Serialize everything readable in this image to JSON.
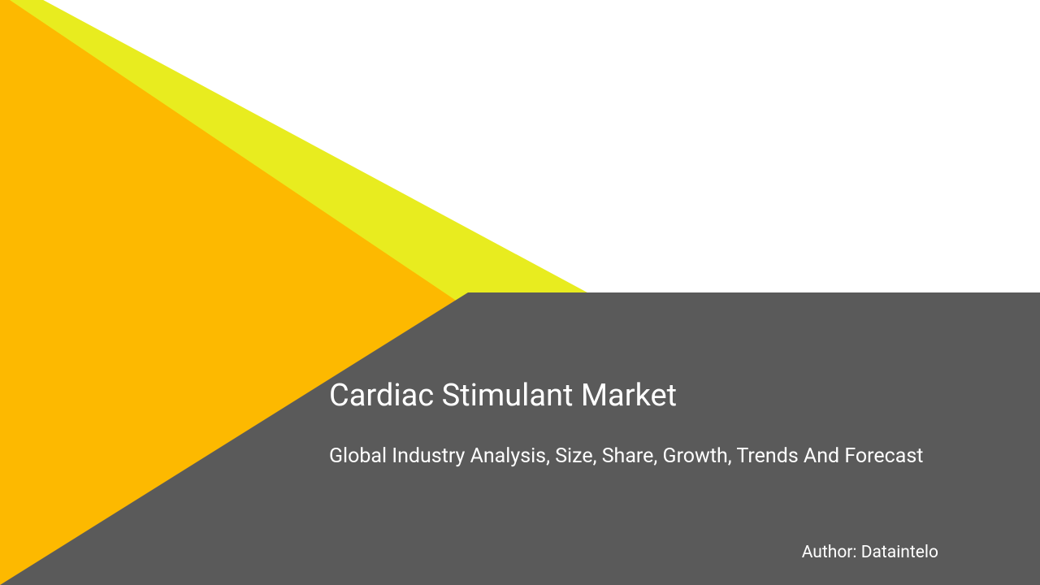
{
  "slide": {
    "title": "Cardiac Stimulant Market",
    "subtitle": "Global   Industry Analysis, Size, Share, Growth, Trends And  Forecast",
    "author": "Author: Dataintelo"
  },
  "colors": {
    "background": "#ffffff",
    "triangle_outer": "#e8ec1f",
    "triangle_inner": "#fdb900",
    "panel": "#5a5a5a",
    "text": "#ffffff"
  },
  "typography": {
    "title_fontsize": 38,
    "subtitle_fontsize": 25,
    "author_fontsize": 21
  }
}
